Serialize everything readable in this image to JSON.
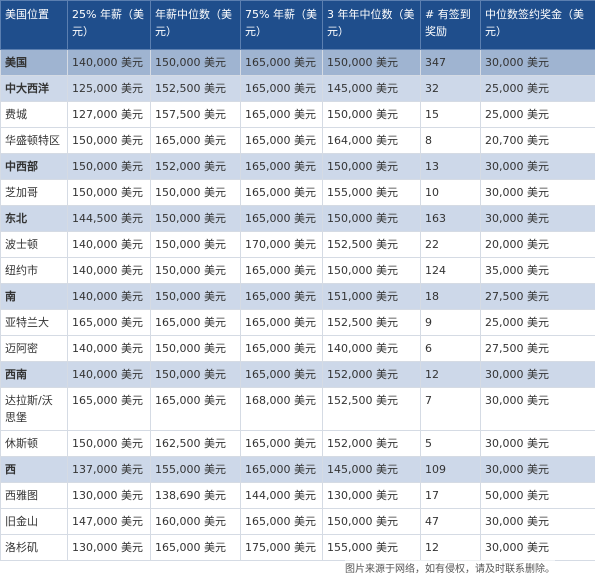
{
  "table": {
    "headers": [
      "美国位置",
      "25% 年薪（美元）",
      "年薪中位数（美元）",
      "75% 年薪（美元）",
      "3 年年中位数（美元）",
      "# 有签到奖励",
      "中位数签约奖金（美元）"
    ],
    "rows": [
      [
        "美国",
        "140,000 美元",
        "150,000 美元",
        "165,000 美元",
        "150,000 美元",
        "347",
        "30,000 美元"
      ],
      [
        "中大西洋",
        "125,000 美元",
        "152,500 美元",
        "165,000 美元",
        "145,000 美元",
        "32",
        "25,000 美元"
      ],
      [
        "费城",
        "127,000 美元",
        "157,500 美元",
        "165,000 美元",
        "150,000 美元",
        "15",
        "25,000 美元"
      ],
      [
        "华盛顿特区",
        "150,000 美元",
        "165,000 美元",
        "165,000 美元",
        "164,000 美元",
        "8",
        "20,700 美元"
      ],
      [
        "中西部",
        "150,000 美元",
        "152,000 美元",
        "165,000 美元",
        "150,000 美元",
        "13",
        "30,000 美元"
      ],
      [
        "芝加哥",
        "150,000 美元",
        "150,000 美元",
        "165,000 美元",
        "155,000 美元",
        "10",
        "30,000 美元"
      ],
      [
        "东北",
        "144,500 美元",
        "150,000 美元",
        "165,000 美元",
        "150,000 美元",
        "163",
        "30,000 美元"
      ],
      [
        "波士顿",
        "140,000 美元",
        "150,000 美元",
        "170,000 美元",
        "152,500 美元",
        "22",
        "20,000 美元"
      ],
      [
        "纽约市",
        "140,000 美元",
        "150,000 美元",
        "165,000 美元",
        "150,000 美元",
        "124",
        "35,000 美元"
      ],
      [
        "南",
        "140,000 美元",
        "150,000 美元",
        "165,000 美元",
        "151,000 美元",
        "18",
        "27,500 美元"
      ],
      [
        "亚特兰大",
        "165,000 美元",
        "165,000 美元",
        "165,000 美元",
        "152,500 美元",
        "9",
        "25,000 美元"
      ],
      [
        "迈阿密",
        "140,000 美元",
        "150,000 美元",
        "165,000 美元",
        "140,000 美元",
        "6",
        "27,500 美元"
      ],
      [
        "西南",
        "140,000 美元",
        "150,000 美元",
        "165,000 美元",
        "152,000 美元",
        "12",
        "30,000 美元"
      ],
      [
        "达拉斯/沃思堡",
        "165,000 美元",
        "165,000 美元",
        "168,000 美元",
        "152,500 美元",
        "7",
        "30,000 美元"
      ],
      [
        "休斯顿",
        "150,000 美元",
        "162,500 美元",
        "165,000 美元",
        "152,000 美元",
        "5",
        "30,000 美元"
      ],
      [
        "西",
        "137,000 美元",
        "155,000 美元",
        "165,000 美元",
        "145,000 美元",
        "109",
        "30,000 美元"
      ],
      [
        "西雅图",
        "130,000 美元",
        "138,690 美元",
        "144,000 美元",
        "130,000 美元",
        "17",
        "50,000 美元"
      ],
      [
        "旧金山",
        "147,000 美元",
        "160,000 美元",
        "165,000 美元",
        "150,000 美元",
        "47",
        "30,000 美元"
      ],
      [
        "洛杉矶",
        "130,000 美元",
        "165,000 美元",
        "175,000 美元",
        "155,000 美元",
        "12",
        "30,000 美元"
      ]
    ]
  },
  "watermark": "图片来源于网络，如有侵权，请及时联系删除。"
}
